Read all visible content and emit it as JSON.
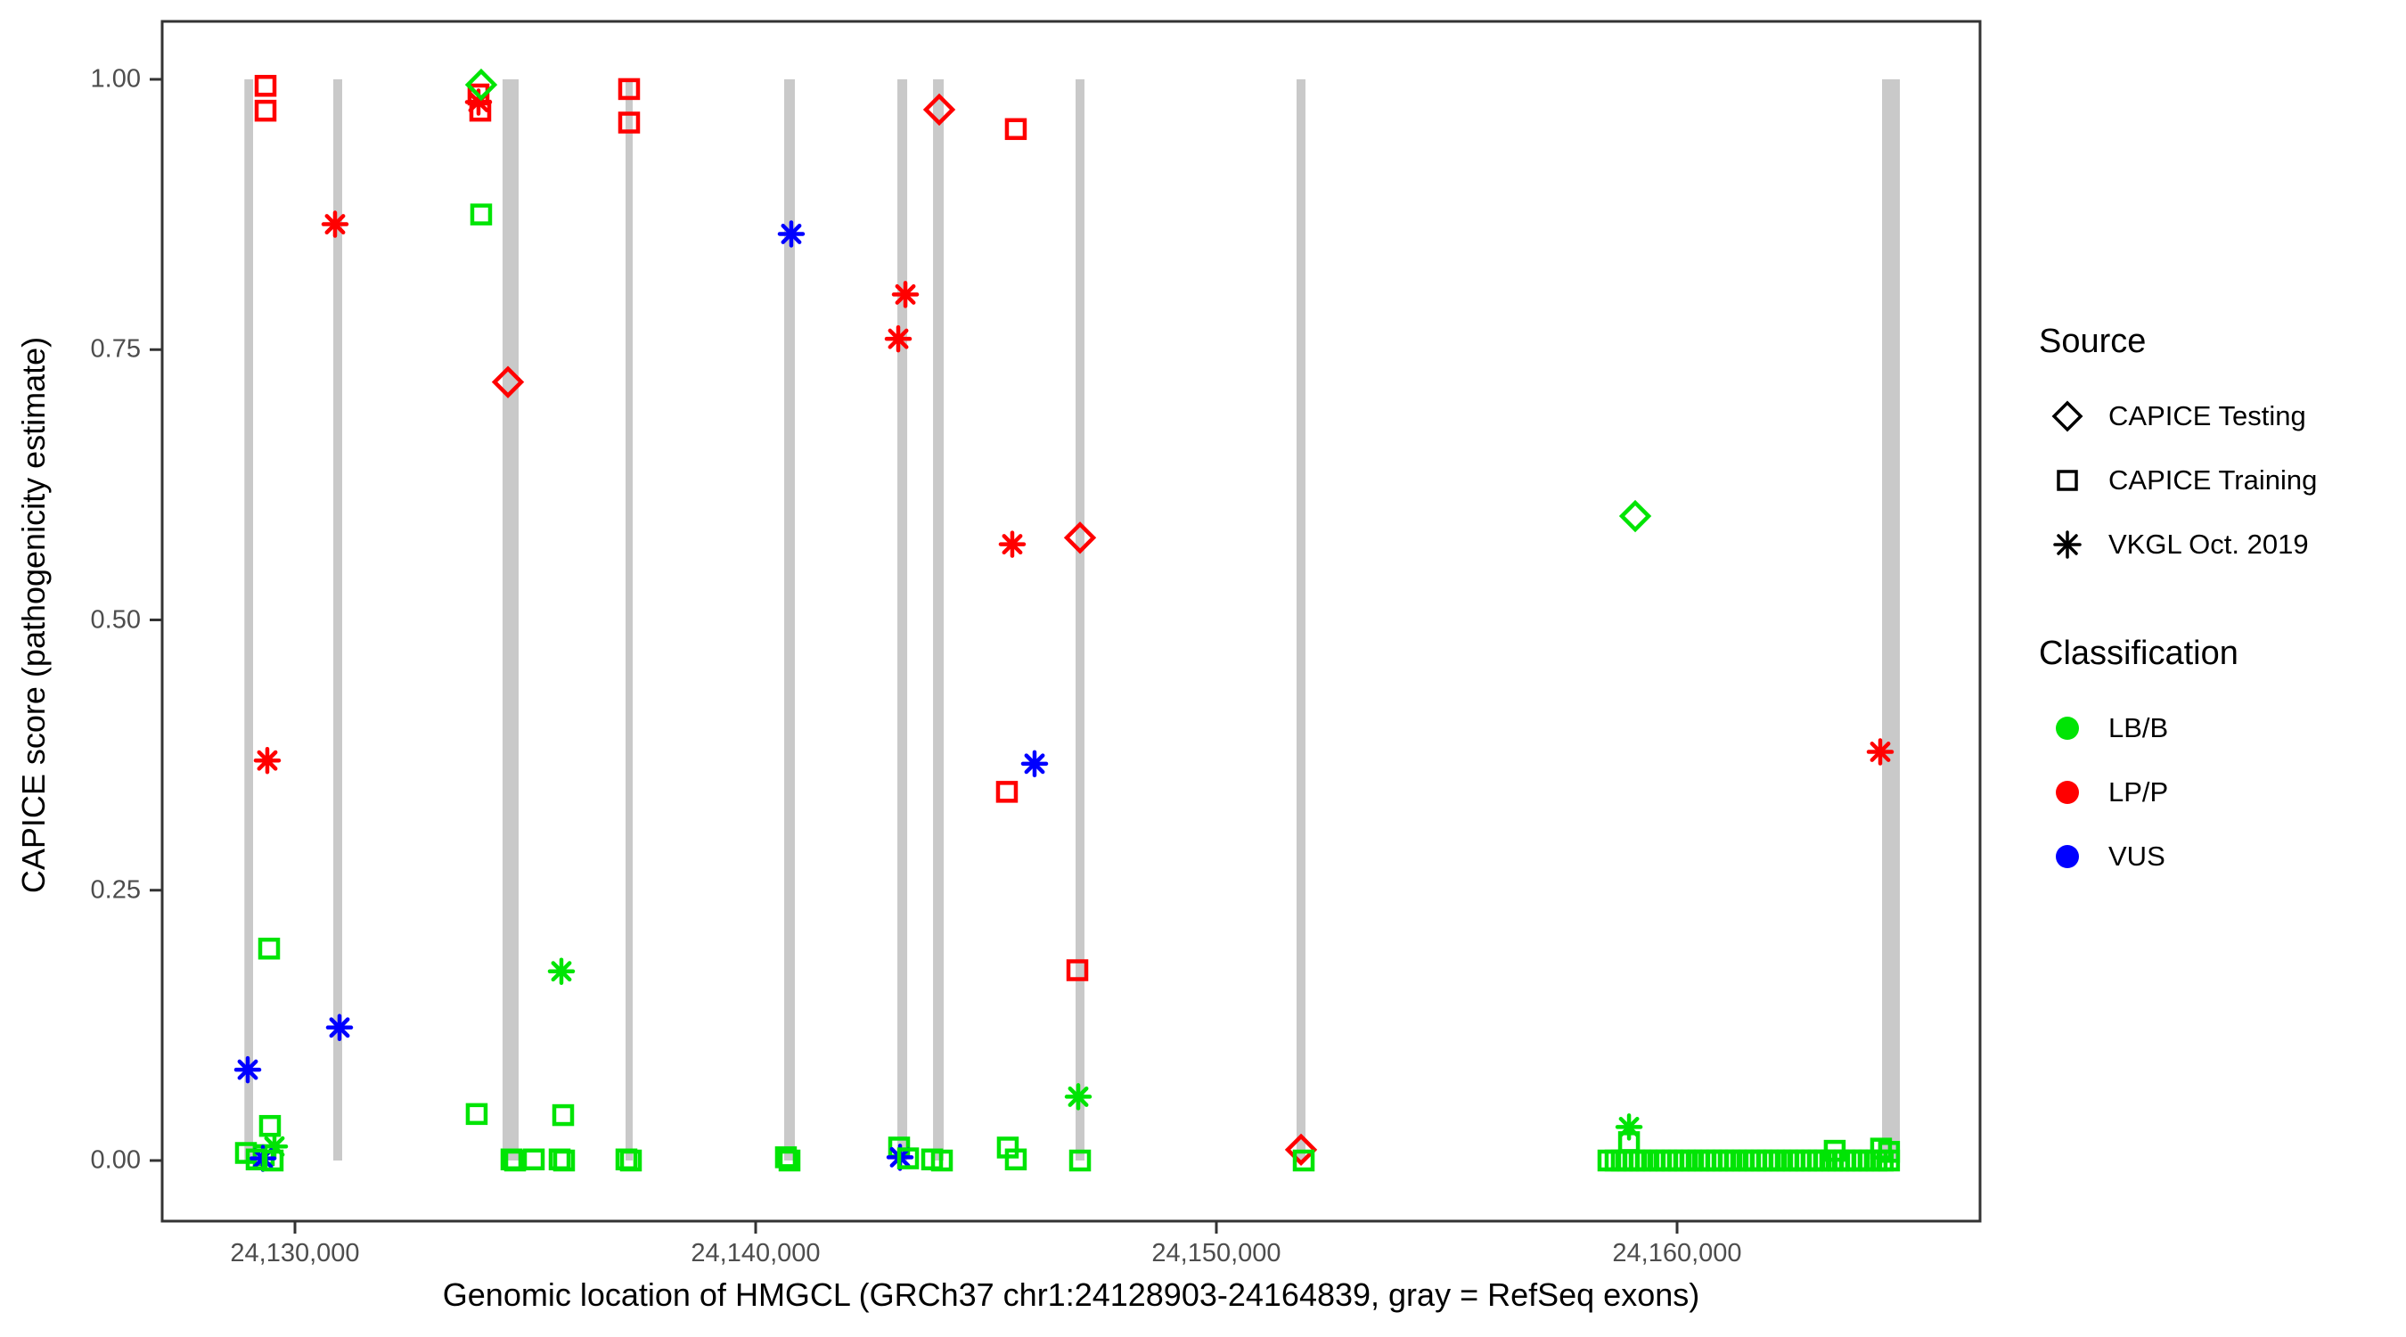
{
  "colors": {
    "classification": {
      "LB/B": "#00E405",
      "LP/P": "#FF0000",
      "VUS": "#0000FF"
    },
    "exon": "#C9C9C9",
    "axis": "#333333",
    "tick_text": "#4D4D4D",
    "legend_glyph": "#000000"
  },
  "legend": {
    "source": {
      "title": "Source",
      "items": [
        {
          "shape": "diamond",
          "label": "CAPICE Testing"
        },
        {
          "shape": "square",
          "label": "CAPICE Training"
        },
        {
          "shape": "asterisk",
          "label": "VKGL Oct. 2019"
        }
      ]
    },
    "classification": {
      "title": "Classification",
      "items": [
        {
          "color": "LB/B",
          "label": "LB/B"
        },
        {
          "color": "LP/P",
          "label": "LP/P"
        },
        {
          "color": "VUS",
          "label": "VUS"
        }
      ]
    }
  },
  "chart_data": {
    "type": "scatter",
    "xlabel": "Genomic location of HMGCL (GRCh37 chr1:24128903-24164839, gray = RefSeq exons)",
    "ylabel": "CAPICE score (pathogenicity estimate)",
    "x_ticks": [
      {
        "label": "24,130,000",
        "pos": 24130000
      },
      {
        "label": "24,140,000",
        "pos": 24140000
      },
      {
        "label": "24,150,000",
        "pos": 24150000
      },
      {
        "label": "24,160,000",
        "pos": 24160000
      }
    ],
    "y_ticks": [
      {
        "label": "0.00",
        "value": 0.0
      },
      {
        "label": "0.25",
        "value": 0.25
      },
      {
        "label": "0.50",
        "value": 0.5
      },
      {
        "label": "0.75",
        "value": 0.75
      },
      {
        "label": "1.00",
        "value": 1.0
      }
    ],
    "x_range": [
      24127100,
      24166640
    ],
    "y_range": [
      0.0,
      1.0
    ],
    "grid": false,
    "legend_position": "right",
    "exons_note": "gray vertical bars = RefSeq exons, drawn from score 0 to 1",
    "exons": [
      {
        "start": 24128903,
        "end": 24129091
      },
      {
        "start": 24130832,
        "end": 24131025
      },
      {
        "start": 24134506,
        "end": 24134855
      },
      {
        "start": 24137176,
        "end": 24137331
      },
      {
        "start": 24140619,
        "end": 24140851
      },
      {
        "start": 24143076,
        "end": 24143289
      },
      {
        "start": 24143850,
        "end": 24144082
      },
      {
        "start": 24146944,
        "end": 24147137
      },
      {
        "start": 24151741,
        "end": 24151934
      },
      {
        "start": 24164449,
        "end": 24164836
      }
    ],
    "points": [
      {
        "pos": 24129362,
        "score": 0.994,
        "source": "CAPICE Training",
        "classification": "LP/P"
      },
      {
        "pos": 24129362,
        "score": 0.971,
        "source": "CAPICE Training",
        "classification": "LP/P"
      },
      {
        "pos": 24129400,
        "score": 0.37,
        "source": "VKGL Oct. 2019",
        "classification": "LP/P"
      },
      {
        "pos": 24129439,
        "score": 0.196,
        "source": "CAPICE Training",
        "classification": "LB/B"
      },
      {
        "pos": 24128975,
        "score": 0.084,
        "source": "VKGL Oct. 2019",
        "classification": "VUS"
      },
      {
        "pos": 24129458,
        "score": 0.032,
        "source": "CAPICE Training",
        "classification": "LB/B"
      },
      {
        "pos": 24129555,
        "score": 0.013,
        "source": "VKGL Oct. 2019",
        "classification": "LB/B"
      },
      {
        "pos": 24128936,
        "score": 0.007,
        "source": "CAPICE Training",
        "classification": "LB/B"
      },
      {
        "pos": 24129323,
        "score": 0.005,
        "source": "CAPICE Training",
        "classification": "LB/B"
      },
      {
        "pos": 24129304,
        "score": 0.002,
        "source": "VKGL Oct. 2019",
        "classification": "VUS"
      },
      {
        "pos": 24129168,
        "score": 0.001,
        "source": "CAPICE Training",
        "classification": "LB/B"
      },
      {
        "pos": 24129516,
        "score": 0.0,
        "source": "CAPICE Training",
        "classification": "LB/B"
      },
      {
        "pos": 24130870,
        "score": 0.866,
        "source": "VKGL Oct. 2019",
        "classification": "LP/P"
      },
      {
        "pos": 24130967,
        "score": 0.123,
        "source": "VKGL Oct. 2019",
        "classification": "VUS"
      },
      {
        "pos": 24133984,
        "score": 0.986,
        "source": "CAPICE Training",
        "classification": "LP/P"
      },
      {
        "pos": 24133984,
        "score": 0.979,
        "source": "VKGL Oct. 2019",
        "classification": "LP/P"
      },
      {
        "pos": 24134023,
        "score": 0.971,
        "source": "CAPICE Training",
        "classification": "LP/P"
      },
      {
        "pos": 24134042,
        "score": 0.995,
        "source": "CAPICE Testing",
        "classification": "LB/B"
      },
      {
        "pos": 24134042,
        "score": 0.875,
        "source": "CAPICE Training",
        "classification": "LB/B"
      },
      {
        "pos": 24133945,
        "score": 0.043,
        "source": "CAPICE Training",
        "classification": "LB/B"
      },
      {
        "pos": 24134623,
        "score": 0.72,
        "source": "CAPICE Testing",
        "classification": "LP/P"
      },
      {
        "pos": 24134700,
        "score": 0.001,
        "source": "CAPICE Training",
        "classification": "LB/B"
      },
      {
        "pos": 24134778,
        "score": 0.0,
        "source": "CAPICE Training",
        "classification": "LB/B"
      },
      {
        "pos": 24135184,
        "score": 0.001,
        "source": "CAPICE Training",
        "classification": "LB/B"
      },
      {
        "pos": 24135745,
        "score": 0.001,
        "source": "CAPICE Training",
        "classification": "LB/B"
      },
      {
        "pos": 24135841,
        "score": 0.0,
        "source": "CAPICE Training",
        "classification": "LB/B"
      },
      {
        "pos": 24135783,
        "score": 0.175,
        "source": "VKGL Oct. 2019",
        "classification": "LB/B"
      },
      {
        "pos": 24135822,
        "score": 0.042,
        "source": "CAPICE Training",
        "classification": "LB/B"
      },
      {
        "pos": 24137195,
        "score": 0.001,
        "source": "CAPICE Training",
        "classification": "LB/B"
      },
      {
        "pos": 24137292,
        "score": 0.0,
        "source": "CAPICE Training",
        "classification": "LB/B"
      },
      {
        "pos": 24137253,
        "score": 0.991,
        "source": "CAPICE Training",
        "classification": "LP/P"
      },
      {
        "pos": 24137253,
        "score": 0.96,
        "source": "CAPICE Training",
        "classification": "LP/P"
      },
      {
        "pos": 24140773,
        "score": 0.857,
        "source": "VKGL Oct. 2019",
        "classification": "VUS"
      },
      {
        "pos": 24140657,
        "score": 0.003,
        "source": "CAPICE Training",
        "classification": "LB/B"
      },
      {
        "pos": 24140735,
        "score": 0.0,
        "source": "CAPICE Training",
        "classification": "LB/B"
      },
      {
        "pos": 24143250,
        "score": 0.801,
        "source": "VKGL Oct. 2019",
        "classification": "LP/P"
      },
      {
        "pos": 24143095,
        "score": 0.76,
        "source": "VKGL Oct. 2019",
        "classification": "LP/P"
      },
      {
        "pos": 24143114,
        "score": 0.012,
        "source": "CAPICE Training",
        "classification": "LB/B"
      },
      {
        "pos": 24143134,
        "score": 0.003,
        "source": "VKGL Oct. 2019",
        "classification": "VUS"
      },
      {
        "pos": 24143308,
        "score": 0.002,
        "source": "CAPICE Training",
        "classification": "LB/B"
      },
      {
        "pos": 24143985,
        "score": 0.972,
        "source": "CAPICE Testing",
        "classification": "LP/P"
      },
      {
        "pos": 24143830,
        "score": 0.001,
        "source": "CAPICE Training",
        "classification": "LB/B"
      },
      {
        "pos": 24144043,
        "score": 0.0,
        "source": "CAPICE Training",
        "classification": "LB/B"
      },
      {
        "pos": 24145647,
        "score": 0.954,
        "source": "CAPICE Training",
        "classification": "LP/P"
      },
      {
        "pos": 24145570,
        "score": 0.57,
        "source": "VKGL Oct. 2019",
        "classification": "LP/P"
      },
      {
        "pos": 24145454,
        "score": 0.341,
        "source": "CAPICE Training",
        "classification": "LP/P"
      },
      {
        "pos": 24146054,
        "score": 0.367,
        "source": "VKGL Oct. 2019",
        "classification": "VUS"
      },
      {
        "pos": 24145473,
        "score": 0.012,
        "source": "CAPICE Training",
        "classification": "LB/B"
      },
      {
        "pos": 24145647,
        "score": 0.001,
        "source": "CAPICE Training",
        "classification": "LB/B"
      },
      {
        "pos": 24147041,
        "score": 0.576,
        "source": "CAPICE Testing",
        "classification": "LP/P"
      },
      {
        "pos": 24146983,
        "score": 0.176,
        "source": "CAPICE Training",
        "classification": "LP/P"
      },
      {
        "pos": 24147002,
        "score": 0.059,
        "source": "VKGL Oct. 2019",
        "classification": "LB/B"
      },
      {
        "pos": 24147041,
        "score": 0.0,
        "source": "CAPICE Training",
        "classification": "LB/B"
      },
      {
        "pos": 24151838,
        "score": 0.01,
        "source": "CAPICE Testing",
        "classification": "LP/P"
      },
      {
        "pos": 24151896,
        "score": 0.0,
        "source": "CAPICE Training",
        "classification": "LB/B"
      },
      {
        "pos": 24159092,
        "score": 0.596,
        "source": "CAPICE Testing",
        "classification": "LB/B"
      },
      {
        "pos": 24158957,
        "score": 0.031,
        "source": "VKGL Oct. 2019",
        "classification": "LB/B"
      },
      {
        "pos": 24158957,
        "score": 0.017,
        "source": "CAPICE Training",
        "classification": "LB/B"
      },
      {
        "pos": 24163422,
        "score": 0.009,
        "source": "CAPICE Training",
        "classification": "LB/B"
      },
      {
        "pos": 24164428,
        "score": 0.011,
        "source": "CAPICE Training",
        "classification": "LB/B"
      },
      {
        "pos": 24164601,
        "score": 0.008,
        "source": "CAPICE Training",
        "classification": "LB/B"
      },
      {
        "pos": 24164410,
        "score": 0.378,
        "source": "VKGL Oct. 2019",
        "classification": "LP/P"
      }
    ],
    "baseline_squares": {
      "source": "CAPICE Training",
      "classification": "LB/B",
      "score": 0.0,
      "positions": [
        24158510,
        24158665,
        24158800,
        24158936,
        24159071,
        24159206,
        24159342,
        24159496,
        24159632,
        24159767,
        24159902,
        24160038,
        24160173,
        24160309,
        24160463,
        24160599,
        24160734,
        24160869,
        24161005,
        24161140,
        24161276,
        24161430,
        24161565,
        24161701,
        24161836,
        24161972,
        24162107,
        24162242,
        24162397,
        24162532,
        24162668,
        24162803,
        24162938,
        24163074,
        24163209,
        24163364,
        24163499,
        24163635,
        24163770,
        24163905,
        24164041,
        24164176,
        24164331,
        24164466,
        24164601
      ]
    }
  }
}
